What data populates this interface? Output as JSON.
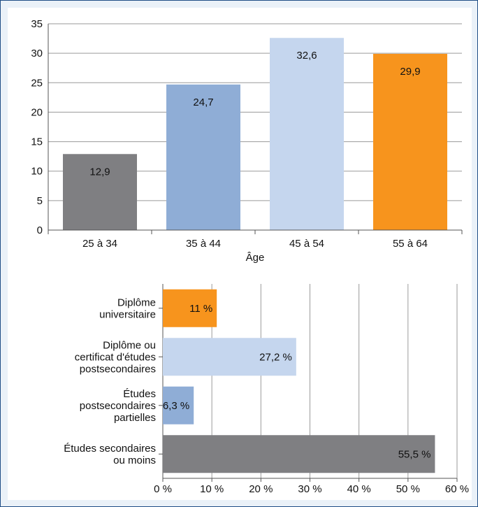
{
  "chart_data": [
    {
      "type": "bar",
      "categories": [
        "25 à 34",
        "35 à 44",
        "45 à 54",
        "55 à 64"
      ],
      "values": [
        12.9,
        24.7,
        32.6,
        29.9
      ],
      "value_labels": [
        "12,9",
        "24,7",
        "32,6",
        "29,9"
      ],
      "colors": [
        "#7f7f82",
        "#8fadd6",
        "#c5d6ee",
        "#f7941d"
      ],
      "xlabel": "Âge",
      "ylim": [
        0,
        35
      ],
      "yticks": [
        "0",
        "5",
        "10",
        "15",
        "20",
        "25",
        "30",
        "35"
      ],
      "grid": "horizontal"
    },
    {
      "type": "bar",
      "orientation": "horizontal",
      "categories": [
        [
          "Diplôme",
          "universitaire"
        ],
        [
          "Diplôme ou",
          "certificat d'études",
          "postsecondaires"
        ],
        [
          "Études",
          "postsecondaires",
          "partielles"
        ],
        [
          "Études secondaires",
          "ou moins"
        ]
      ],
      "values": [
        11,
        27.2,
        6.3,
        55.5
      ],
      "value_labels": [
        "11 %",
        "27,2 %",
        "6,3 %",
        "55,5 %"
      ],
      "colors": [
        "#f7941d",
        "#c5d6ee",
        "#8fadd6",
        "#7f7f82"
      ],
      "xlim": [
        0,
        60
      ],
      "xticks": [
        "0 %",
        "10 %",
        "20 %",
        "30 %",
        "40 %",
        "50 %",
        "60 %"
      ],
      "grid": "vertical"
    }
  ]
}
